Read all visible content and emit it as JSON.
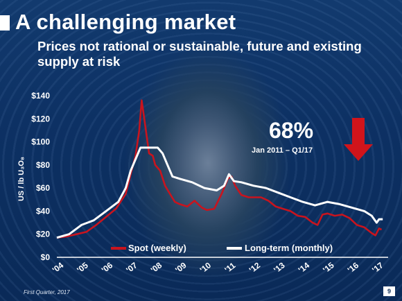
{
  "slide": {
    "title": "A challenging market",
    "subtitle": "Prices not rational or sustainable, future and existing supply at risk",
    "footer": "First Quarter, 2017",
    "page_number": "9"
  },
  "callout": {
    "percent": "68%",
    "range": "Jan 2011 – Q1/17",
    "arrow_icon": "down-arrow-icon",
    "arrow_color": "#d1141b"
  },
  "colors": {
    "spot": "#c8141e",
    "long_term": "#ffffff"
  },
  "chart_data": {
    "type": "line",
    "ylabel": "US / lb U₃O₈",
    "xlabel": "",
    "ylim": [
      0,
      140
    ],
    "y_ticks": [
      "$0",
      "$20",
      "$40",
      "$60",
      "$80",
      "$100",
      "$120",
      "$140"
    ],
    "x_ticks": [
      "'04",
      "'05",
      "'06",
      "'07",
      "'08",
      "'09",
      "'10",
      "'11",
      "'12",
      "'13",
      "'14",
      "'15",
      "'16",
      "'17"
    ],
    "xlim": [
      2004,
      2017.3
    ],
    "grid": false,
    "legend_position": "bottom",
    "series": [
      {
        "name": "Spot (weekly)",
        "color": "#c8141e",
        "points": [
          [
            2004.0,
            17
          ],
          [
            2004.4,
            18
          ],
          [
            2004.8,
            20
          ],
          [
            2005.2,
            22
          ],
          [
            2005.6,
            28
          ],
          [
            2006.0,
            35
          ],
          [
            2006.4,
            42
          ],
          [
            2006.8,
            55
          ],
          [
            2007.0,
            72
          ],
          [
            2007.2,
            88
          ],
          [
            2007.35,
            110
          ],
          [
            2007.45,
            136
          ],
          [
            2007.6,
            113
          ],
          [
            2007.75,
            90
          ],
          [
            2007.9,
            88
          ],
          [
            2008.0,
            80
          ],
          [
            2008.2,
            75
          ],
          [
            2008.4,
            62
          ],
          [
            2008.6,
            55
          ],
          [
            2008.8,
            48
          ],
          [
            2009.0,
            46
          ],
          [
            2009.3,
            44
          ],
          [
            2009.6,
            49
          ],
          [
            2009.9,
            43
          ],
          [
            2010.1,
            41
          ],
          [
            2010.4,
            42
          ],
          [
            2010.7,
            55
          ],
          [
            2010.95,
            68
          ],
          [
            2011.1,
            70
          ],
          [
            2011.25,
            62
          ],
          [
            2011.5,
            54
          ],
          [
            2011.8,
            52
          ],
          [
            2012.0,
            52
          ],
          [
            2012.3,
            52
          ],
          [
            2012.6,
            49
          ],
          [
            2012.9,
            44
          ],
          [
            2013.2,
            42
          ],
          [
            2013.5,
            40
          ],
          [
            2013.8,
            36
          ],
          [
            2014.1,
            35
          ],
          [
            2014.4,
            30
          ],
          [
            2014.6,
            28
          ],
          [
            2014.8,
            37
          ],
          [
            2015.0,
            38
          ],
          [
            2015.3,
            36
          ],
          [
            2015.6,
            37
          ],
          [
            2015.9,
            34
          ],
          [
            2016.2,
            28
          ],
          [
            2016.5,
            26
          ],
          [
            2016.8,
            21
          ],
          [
            2016.95,
            19
          ],
          [
            2017.1,
            25
          ],
          [
            2017.2,
            24
          ]
        ]
      },
      {
        "name": "Long-term (monthly)",
        "color": "#ffffff",
        "points": [
          [
            2004.0,
            17
          ],
          [
            2004.5,
            20
          ],
          [
            2005.0,
            28
          ],
          [
            2005.5,
            32
          ],
          [
            2006.0,
            40
          ],
          [
            2006.5,
            48
          ],
          [
            2006.8,
            60
          ],
          [
            2007.0,
            75
          ],
          [
            2007.2,
            85
          ],
          [
            2007.4,
            95
          ],
          [
            2007.6,
            95
          ],
          [
            2007.9,
            95
          ],
          [
            2008.1,
            95
          ],
          [
            2008.3,
            90
          ],
          [
            2008.5,
            80
          ],
          [
            2008.7,
            70
          ],
          [
            2009.0,
            68
          ],
          [
            2009.5,
            65
          ],
          [
            2010.0,
            60
          ],
          [
            2010.5,
            58
          ],
          [
            2010.8,
            62
          ],
          [
            2011.0,
            72
          ],
          [
            2011.2,
            66
          ],
          [
            2011.5,
            65
          ],
          [
            2012.0,
            62
          ],
          [
            2012.5,
            60
          ],
          [
            2013.0,
            56
          ],
          [
            2013.5,
            52
          ],
          [
            2014.0,
            48
          ],
          [
            2014.5,
            45
          ],
          [
            2015.0,
            48
          ],
          [
            2015.5,
            46
          ],
          [
            2016.0,
            43
          ],
          [
            2016.5,
            40
          ],
          [
            2016.8,
            36
          ],
          [
            2017.0,
            30
          ],
          [
            2017.1,
            33
          ],
          [
            2017.25,
            33
          ]
        ]
      }
    ]
  }
}
